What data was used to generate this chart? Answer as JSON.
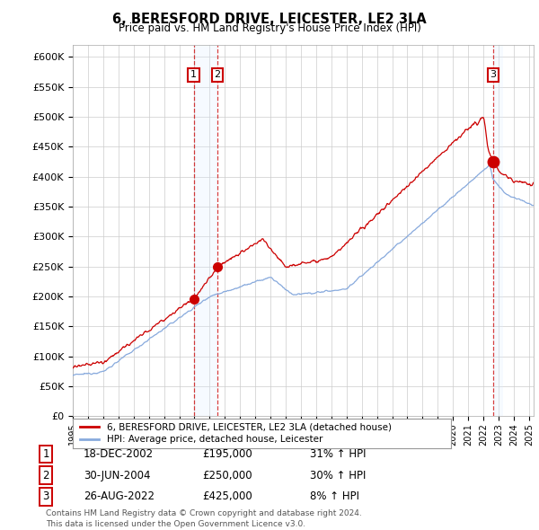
{
  "title": "6, BERESFORD DRIVE, LEICESTER, LE2 3LA",
  "subtitle": "Price paid vs. HM Land Registry's House Price Index (HPI)",
  "ylim": [
    0,
    620000
  ],
  "yticks": [
    0,
    50000,
    100000,
    150000,
    200000,
    250000,
    300000,
    350000,
    400000,
    450000,
    500000,
    550000,
    600000
  ],
  "xlim_start": 1995.0,
  "xlim_end": 2025.3,
  "xtick_years": [
    1995,
    1996,
    1997,
    1998,
    1999,
    2000,
    2001,
    2002,
    2003,
    2004,
    2005,
    2006,
    2007,
    2008,
    2009,
    2010,
    2011,
    2012,
    2013,
    2014,
    2015,
    2016,
    2017,
    2018,
    2019,
    2020,
    2021,
    2022,
    2023,
    2024,
    2025
  ],
  "transaction1_date": 2002.96,
  "transaction1_price": 195000,
  "transaction2_date": 2004.5,
  "transaction2_price": 250000,
  "transaction3_date": 2022.65,
  "transaction3_price": 425000,
  "transaction1_date_text": "18-DEC-2002",
  "transaction1_price_text": "£195,000",
  "transaction1_hpi_text": "31% ↑ HPI",
  "transaction2_date_text": "30-JUN-2004",
  "transaction2_price_text": "£250,000",
  "transaction2_hpi_text": "30% ↑ HPI",
  "transaction3_date_text": "26-AUG-2022",
  "transaction3_price_text": "£425,000",
  "transaction3_hpi_text": "8% ↑ HPI",
  "line_color_red": "#cc0000",
  "line_color_blue": "#88aadd",
  "shade_color": "#ddeeff",
  "grid_color": "#cccccc",
  "background_color": "#ffffff",
  "legend_label_red": "6, BERESFORD DRIVE, LEICESTER, LE2 3LA (detached house)",
  "legend_label_blue": "HPI: Average price, detached house, Leicester",
  "footnote": "Contains HM Land Registry data © Crown copyright and database right 2024.\nThis data is licensed under the Open Government Licence v3.0."
}
